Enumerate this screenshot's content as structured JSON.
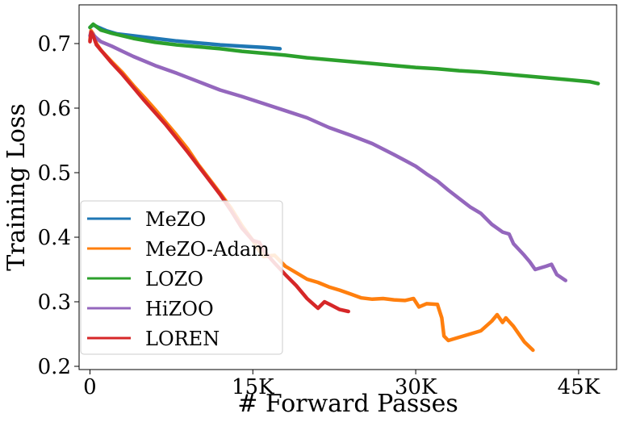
{
  "chart_data": {
    "type": "line",
    "title": "",
    "xlabel": "# Forward Passes",
    "ylabel": "Training Loss",
    "xlim": [
      -1000,
      48500
    ],
    "ylim": [
      0.195,
      0.76
    ],
    "x_ticks": [
      {
        "value": 0,
        "label": "0"
      },
      {
        "value": 15000,
        "label": "15K"
      },
      {
        "value": 30000,
        "label": "30K"
      },
      {
        "value": 45000,
        "label": "45K"
      }
    ],
    "y_ticks": [
      {
        "value": 0.2,
        "label": "0.2"
      },
      {
        "value": 0.3,
        "label": "0.3"
      },
      {
        "value": 0.4,
        "label": "0.4"
      },
      {
        "value": 0.5,
        "label": "0.5"
      },
      {
        "value": 0.6,
        "label": "0.6"
      },
      {
        "value": 0.7,
        "label": "0.7"
      }
    ],
    "grid": false,
    "legend_position": "lower-left",
    "series": [
      {
        "name": "MeZO",
        "color": "#1f77b4",
        "x": [
          0,
          300,
          800,
          1500,
          2500,
          4000,
          6000,
          8000,
          10000,
          12000,
          14000,
          16000,
          17500
        ],
        "y": [
          0.725,
          0.729,
          0.725,
          0.72,
          0.715,
          0.712,
          0.708,
          0.704,
          0.701,
          0.698,
          0.696,
          0.694,
          0.692
        ]
      },
      {
        "name": "MeZO-Adam",
        "color": "#ff7f0e",
        "x": [
          0,
          100,
          300,
          600,
          1000,
          2000,
          3000,
          4000,
          5000,
          6000,
          7000,
          8000,
          9000,
          10000,
          11000,
          12000,
          13000,
          14000,
          15000,
          15600,
          16000,
          17000,
          18000,
          19000,
          20000,
          21000,
          22000,
          23000,
          24000,
          25000,
          26000,
          27000,
          28000,
          29000,
          29800,
          30300,
          31000,
          32000,
          32400,
          32600,
          33000,
          34000,
          35000,
          36000,
          37000,
          37500,
          38000,
          38300,
          39000,
          40000,
          40800
        ],
        "y": [
          0.705,
          0.72,
          0.715,
          0.7,
          0.69,
          0.672,
          0.655,
          0.635,
          0.617,
          0.598,
          0.578,
          0.558,
          0.537,
          0.512,
          0.49,
          0.468,
          0.445,
          0.418,
          0.395,
          0.379,
          0.37,
          0.372,
          0.355,
          0.345,
          0.335,
          0.33,
          0.323,
          0.318,
          0.312,
          0.306,
          0.304,
          0.305,
          0.303,
          0.302,
          0.305,
          0.292,
          0.297,
          0.296,
          0.275,
          0.247,
          0.24,
          0.245,
          0.25,
          0.255,
          0.27,
          0.28,
          0.268,
          0.275,
          0.262,
          0.238,
          0.225
        ]
      },
      {
        "name": "LOZO",
        "color": "#2ca02c",
        "x": [
          0,
          300,
          1000,
          2000,
          4000,
          6000,
          8000,
          10000,
          12000,
          14000,
          16000,
          18000,
          20000,
          22000,
          24000,
          26000,
          28000,
          30000,
          32000,
          34000,
          36000,
          38000,
          40000,
          42000,
          44000,
          46000,
          46800
        ],
        "y": [
          0.725,
          0.73,
          0.721,
          0.716,
          0.708,
          0.702,
          0.698,
          0.695,
          0.692,
          0.688,
          0.685,
          0.682,
          0.678,
          0.675,
          0.672,
          0.669,
          0.666,
          0.663,
          0.661,
          0.658,
          0.656,
          0.653,
          0.65,
          0.647,
          0.644,
          0.641,
          0.638
        ]
      },
      {
        "name": "HiZOO",
        "color": "#9467bd",
        "x": [
          0,
          100,
          500,
          1000,
          2000,
          3000,
          4000,
          6000,
          8000,
          10000,
          12000,
          14000,
          16000,
          18000,
          20000,
          22000,
          24000,
          26000,
          28000,
          30000,
          31000,
          32000,
          33000,
          34000,
          35000,
          36000,
          37000,
          38000,
          38600,
          39000,
          40000,
          40500,
          41000,
          42000,
          42500,
          43000,
          43800
        ],
        "y": [
          0.712,
          0.718,
          0.71,
          0.703,
          0.696,
          0.688,
          0.68,
          0.666,
          0.654,
          0.641,
          0.628,
          0.618,
          0.607,
          0.596,
          0.585,
          0.57,
          0.558,
          0.545,
          0.528,
          0.51,
          0.498,
          0.487,
          0.473,
          0.46,
          0.447,
          0.437,
          0.42,
          0.408,
          0.405,
          0.39,
          0.372,
          0.362,
          0.35,
          0.355,
          0.358,
          0.342,
          0.333
        ]
      },
      {
        "name": "LOREN",
        "color": "#d62728",
        "x": [
          0,
          100,
          300,
          600,
          1000,
          2000,
          3000,
          4000,
          5000,
          6000,
          7000,
          8000,
          9000,
          10000,
          11000,
          12000,
          13000,
          14000,
          15000,
          15600,
          16000,
          17000,
          18000,
          19000,
          20000,
          21000,
          21600,
          22200,
          23000,
          23800
        ],
        "y": [
          0.703,
          0.718,
          0.712,
          0.698,
          0.69,
          0.67,
          0.652,
          0.632,
          0.612,
          0.593,
          0.574,
          0.553,
          0.532,
          0.51,
          0.488,
          0.466,
          0.441,
          0.414,
          0.395,
          0.392,
          0.379,
          0.36,
          0.342,
          0.325,
          0.305,
          0.29,
          0.3,
          0.295,
          0.288,
          0.285
        ]
      }
    ]
  }
}
